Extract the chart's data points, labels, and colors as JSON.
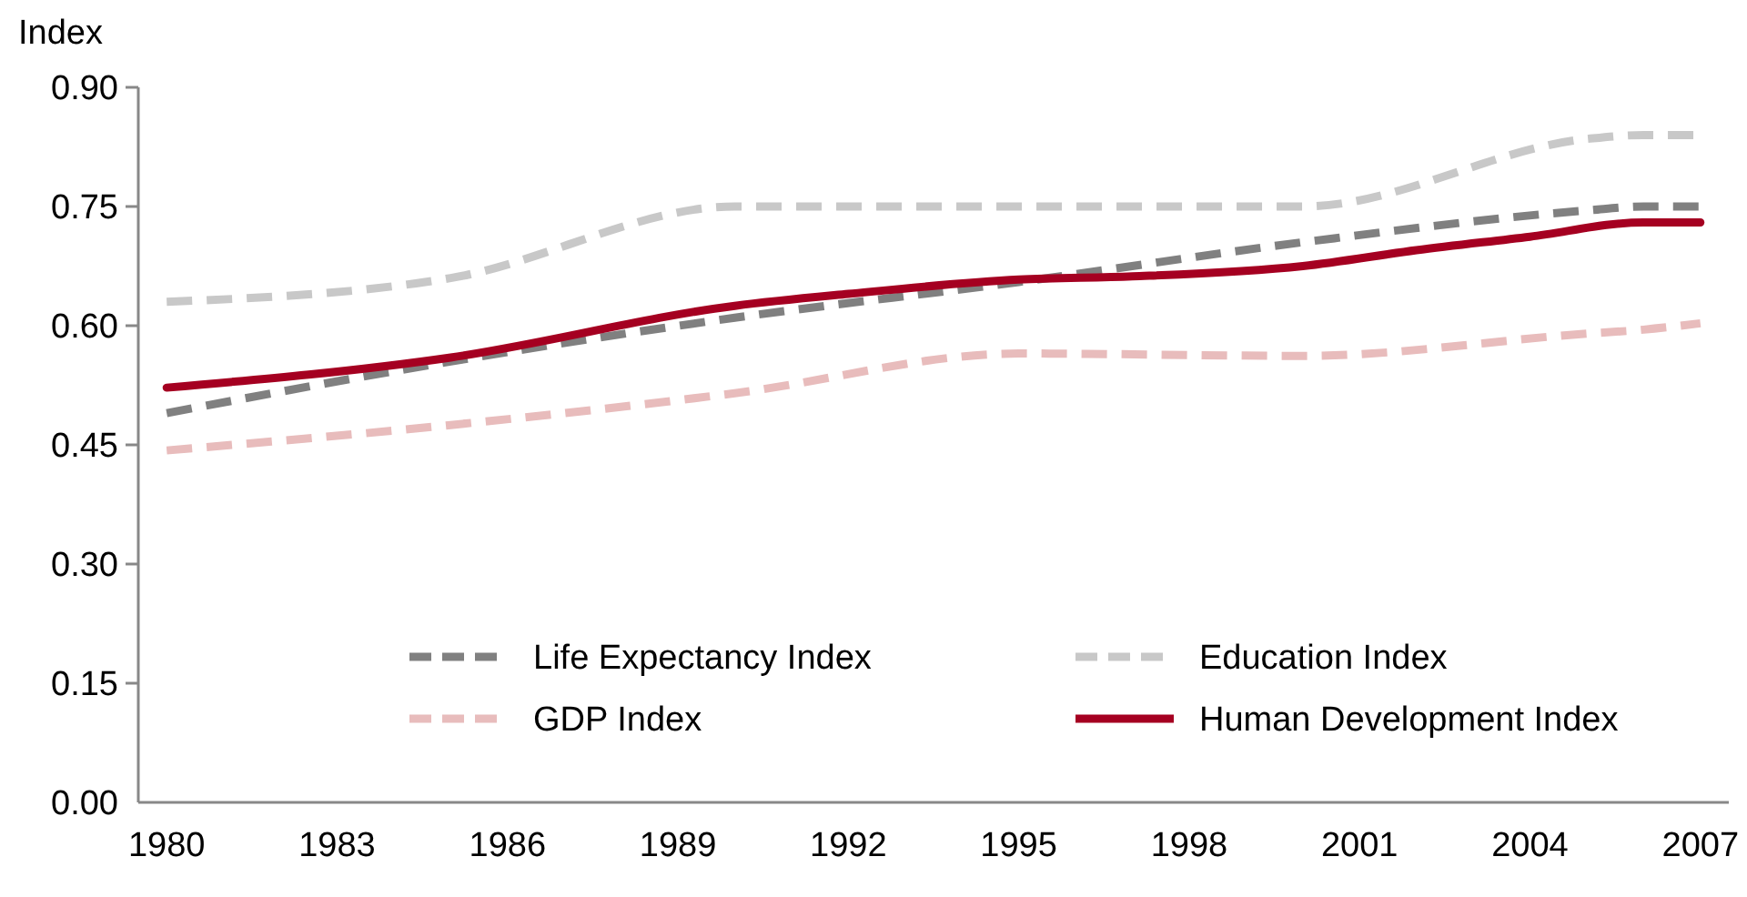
{
  "chart_data": {
    "type": "line",
    "ylabel": "Index",
    "xlim": [
      1979.5,
      2007.5
    ],
    "xticks": [
      1980,
      1983,
      1986,
      1989,
      1992,
      1995,
      1998,
      2001,
      2004,
      2007
    ],
    "ylim": [
      0,
      0.9
    ],
    "yticks": [
      {
        "value": 0,
        "label": "0.00"
      },
      {
        "value": 0.15,
        "label": "0.15"
      },
      {
        "value": 0.3,
        "label": "0.30"
      },
      {
        "value": 0.45,
        "label": "0.45"
      },
      {
        "value": 0.6,
        "label": "0.60"
      },
      {
        "value": 0.75,
        "label": "0.75"
      },
      {
        "value": 0.9,
        "label": "0.90"
      }
    ],
    "grid": false,
    "legend": "bottom",
    "marker": "none",
    "x": [
      1980,
      1985,
      1990,
      1995,
      2000,
      2005,
      2006,
      2007
    ],
    "series": [
      {
        "name": "Life Expectancy Index",
        "color": "#808080",
        "line_style": "dashed",
        "values": [
          0.49,
          0.555,
          0.61,
          0.655,
          0.705,
          0.745,
          0.75,
          0.75
        ]
      },
      {
        "name": "Education Index",
        "color": "#c8c8c8",
        "line_style": "dashed",
        "values": [
          0.63,
          0.66,
          0.75,
          0.75,
          0.75,
          0.835,
          0.84,
          0.84
        ]
      },
      {
        "name": "GDP Index",
        "color": "#e8bcbc",
        "line_style": "dashed",
        "values": [
          0.443,
          0.475,
          0.515,
          0.565,
          0.562,
          0.59,
          0.595,
          0.603
        ]
      },
      {
        "name": "Human Development Index",
        "color": "#a50021",
        "line_style": "solid",
        "x": [
          1980,
          1985,
          1990,
          1992,
          1995,
          1997,
          2000,
          2002,
          2004,
          2006,
          2007
        ],
        "values": [
          0.522,
          0.56,
          0.625,
          0.64,
          0.658,
          0.662,
          0.675,
          0.695,
          0.712,
          0.73,
          0.73
        ]
      }
    ]
  }
}
